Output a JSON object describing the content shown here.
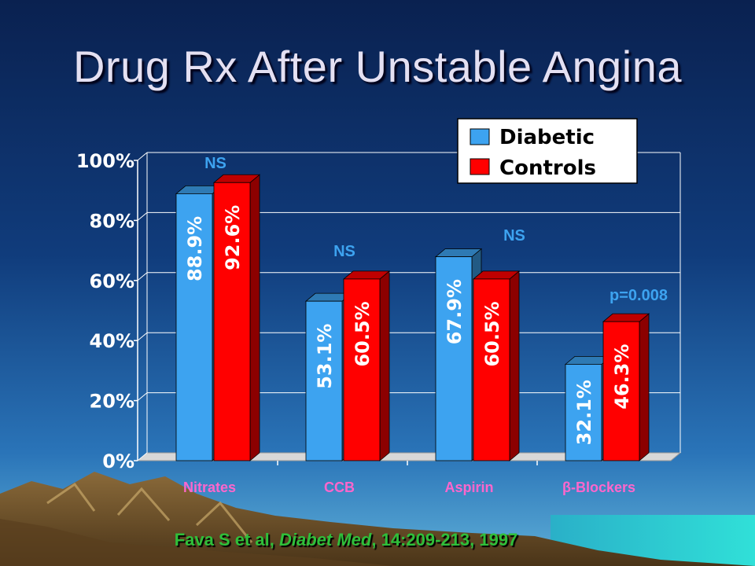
{
  "slide": {
    "title": "Drug Rx After Unstable Angina",
    "citation": {
      "author": "Fava S et al, ",
      "journal": "Diabet Med",
      "rest": ", 14:209-213, 1997"
    }
  },
  "colors": {
    "diabetic": "#3da3f0",
    "controls": "#ff0000",
    "annotation_text": "#3da3f0",
    "category_text": "#ff66cc",
    "axis_text": "#ffffff"
  },
  "chart_data": {
    "type": "bar",
    "categories": [
      "Nitrates",
      "CCB",
      "Aspirin",
      "β-Blockers"
    ],
    "series": [
      {
        "name": "Diabetic",
        "values": [
          88.9,
          53.1,
          67.9,
          32.1
        ],
        "labels": [
          "88.9%",
          "53.1%",
          "67.9%",
          "32.1%"
        ]
      },
      {
        "name": "Controls",
        "values": [
          92.6,
          60.5,
          60.5,
          46.3
        ],
        "labels": [
          "92.6%",
          "60.5%",
          "60.5%",
          "46.3%"
        ]
      }
    ],
    "ylim": [
      0,
      100
    ],
    "yticks": [
      "0%",
      "20%",
      "40%",
      "60%",
      "80%",
      "100%"
    ],
    "ytick_values": [
      0,
      20,
      40,
      60,
      80,
      100
    ],
    "annotations": [
      "NS",
      "NS",
      "NS",
      "p=0.008"
    ],
    "legend": "top-right",
    "grid": true,
    "style": "3d"
  }
}
